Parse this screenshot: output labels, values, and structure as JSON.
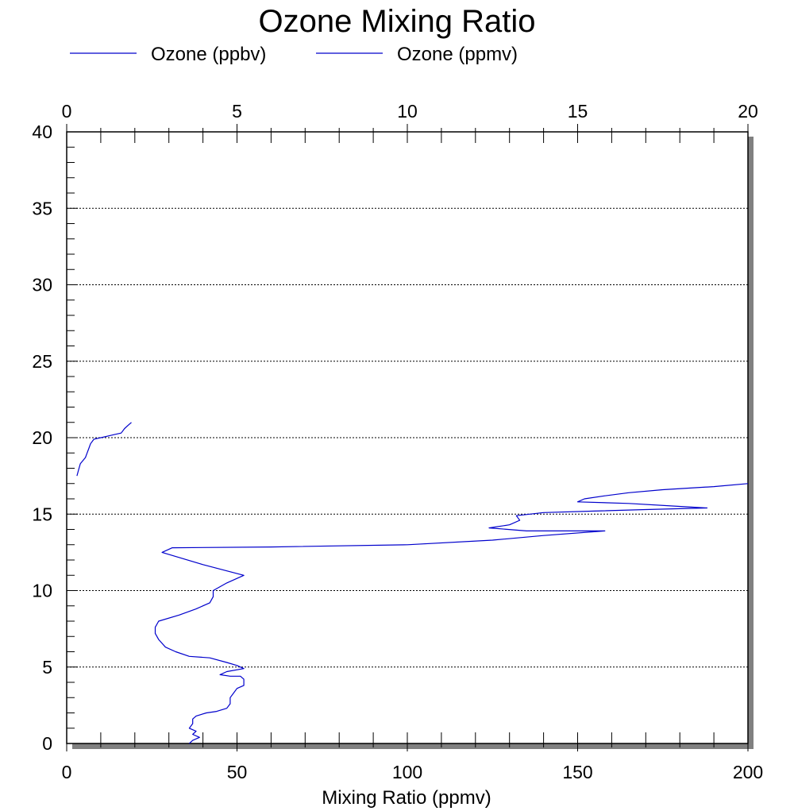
{
  "chart_data": {
    "type": "line",
    "title": "Ozone Mixing Ratio",
    "xlabel": "Mixing Ratio (ppmv)",
    "ylabel": "",
    "x_bottom": {
      "range": [
        0,
        200
      ],
      "ticks": [
        "0",
        "50",
        "100",
        "150",
        "200"
      ]
    },
    "x_top": {
      "range": [
        0,
        20
      ],
      "ticks": [
        "0",
        "5",
        "10",
        "15",
        "20"
      ]
    },
    "y": {
      "range": [
        0,
        40
      ],
      "ticks": [
        "0",
        "5",
        "10",
        "15",
        "20",
        "25",
        "30",
        "35",
        "40"
      ]
    },
    "grid": "horizontal dotted",
    "legend_position": "top",
    "series": [
      {
        "name": "Ozone (ppbv)",
        "color": "#0000cc",
        "axis": "bottom",
        "points": [
          [
            36,
            0
          ],
          [
            37,
            0.2
          ],
          [
            39,
            0.4
          ],
          [
            37,
            0.6
          ],
          [
            38,
            0.8
          ],
          [
            36,
            1.0
          ],
          [
            37,
            1.3
          ],
          [
            37,
            1.6
          ],
          [
            38,
            1.8
          ],
          [
            41,
            2.0
          ],
          [
            44,
            2.1
          ],
          [
            47,
            2.3
          ],
          [
            48,
            2.6
          ],
          [
            48,
            3.0
          ],
          [
            49,
            3.3
          ],
          [
            50,
            3.6
          ],
          [
            52,
            3.8
          ],
          [
            52,
            4.2
          ],
          [
            51,
            4.4
          ],
          [
            48,
            4.4
          ],
          [
            45,
            4.5
          ],
          [
            47,
            4.7
          ],
          [
            52,
            4.9
          ],
          [
            50,
            5.1
          ],
          [
            47,
            5.3
          ],
          [
            42,
            5.6
          ],
          [
            36,
            5.7
          ],
          [
            32,
            6.0
          ],
          [
            29,
            6.3
          ],
          [
            27,
            6.8
          ],
          [
            26,
            7.2
          ],
          [
            26,
            7.6
          ],
          [
            27,
            8.0
          ],
          [
            33,
            8.4
          ],
          [
            38,
            8.8
          ],
          [
            42,
            9.2
          ],
          [
            43,
            9.6
          ],
          [
            43,
            10.0
          ],
          [
            47,
            10.5
          ],
          [
            52,
            11.0
          ],
          [
            40,
            11.7
          ],
          [
            28,
            12.5
          ],
          [
            31,
            12.8
          ],
          [
            60,
            12.85
          ],
          [
            100,
            13.0
          ],
          [
            125,
            13.3
          ],
          [
            140,
            13.6
          ],
          [
            158,
            13.9
          ],
          [
            135,
            13.9
          ],
          [
            124,
            14.1
          ],
          [
            130,
            14.3
          ],
          [
            133,
            14.6
          ],
          [
            132,
            14.9
          ],
          [
            140,
            15.1
          ],
          [
            155,
            15.2
          ],
          [
            170,
            15.3
          ],
          [
            188,
            15.4
          ],
          [
            165,
            15.7
          ],
          [
            150,
            15.8
          ],
          [
            152,
            16.0
          ],
          [
            158,
            16.2
          ],
          [
            165,
            16.4
          ],
          [
            175,
            16.6
          ],
          [
            190,
            16.8
          ],
          [
            200,
            17.0
          ]
        ]
      },
      {
        "name": "Ozone (ppmv)",
        "color": "#0000cc",
        "axis": "top",
        "points": [
          [
            0.3,
            17.5
          ],
          [
            0.35,
            17.9
          ],
          [
            0.4,
            18.3
          ],
          [
            0.55,
            18.7
          ],
          [
            0.6,
            19.0
          ],
          [
            0.65,
            19.3
          ],
          [
            0.7,
            19.6
          ],
          [
            0.8,
            19.9
          ],
          [
            1.0,
            20.0
          ],
          [
            1.2,
            20.1
          ],
          [
            1.4,
            20.2
          ],
          [
            1.6,
            20.3
          ],
          [
            1.7,
            20.6
          ],
          [
            1.8,
            20.8
          ],
          [
            1.9,
            21.0
          ]
        ]
      }
    ]
  }
}
